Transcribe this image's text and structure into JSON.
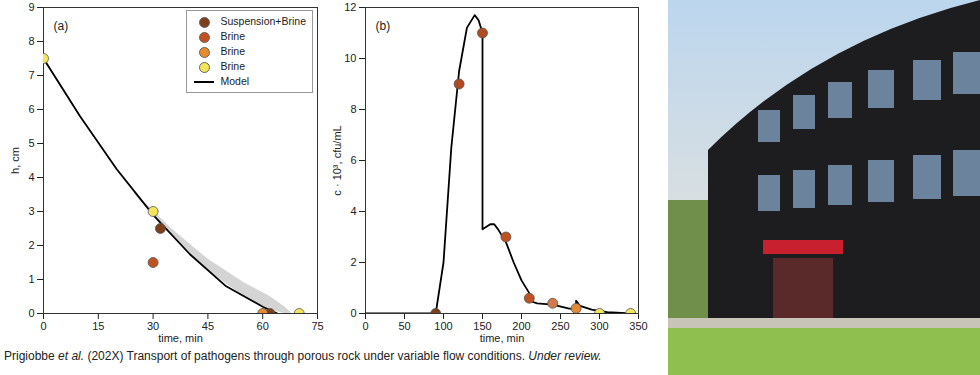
{
  "chart_data": [
    {
      "type": "scatter",
      "title": "(a)",
      "x_label": "time, min",
      "y_label": "h, cm",
      "xlim": [
        0,
        75
      ],
      "xticks": [
        0,
        15,
        30,
        45,
        60,
        75
      ],
      "ylim": [
        0,
        9
      ],
      "yticks": [
        0,
        1,
        2,
        3,
        4,
        5,
        6,
        7,
        8,
        9
      ],
      "legend": "top-right",
      "series": [
        {
          "name": "Suspension+Brine",
          "type": "scatter",
          "color": "#7b3f1a",
          "x": [
            32,
            62
          ],
          "values": [
            2.5,
            0
          ]
        },
        {
          "name": "Brine",
          "type": "scatter",
          "color": "#c0521f",
          "x": [
            30
          ],
          "values": [
            1.5
          ]
        },
        {
          "name": "Brine",
          "type": "scatter",
          "color": "#e88a30",
          "x": [
            60
          ],
          "values": [
            0
          ]
        },
        {
          "name": "Brine",
          "type": "scatter",
          "color": "#f2e55c",
          "x": [
            0,
            30,
            70
          ],
          "values": [
            7.5,
            3,
            0
          ]
        },
        {
          "name": "Model",
          "type": "line",
          "color": "#000000",
          "x": [
            0,
            10,
            20,
            30,
            40,
            50,
            60,
            64
          ],
          "values": [
            7.5,
            5.8,
            4.25,
            2.9,
            1.75,
            0.8,
            0.2,
            0
          ],
          "band": {
            "x": [
              25,
              35,
              45,
              55,
              62,
              66,
              68
            ],
            "lower": [
              3.5,
              2.3,
              1.25,
              0.5,
              0.1,
              0,
              0
            ],
            "upper": [
              3.55,
              2.5,
              1.6,
              0.9,
              0.5,
              0.2,
              0
            ]
          }
        }
      ]
    },
    {
      "type": "scatter",
      "title": "(b)",
      "x_label": "time, min",
      "y_label": "c · 10³, cfu/mL",
      "xlim": [
        0,
        350
      ],
      "xticks": [
        0,
        50,
        100,
        150,
        200,
        250,
        300,
        350
      ],
      "ylim": [
        0,
        12
      ],
      "yticks": [
        0,
        2,
        4,
        6,
        8,
        10,
        12
      ],
      "series": [
        {
          "type": "scatter",
          "colors": [
            "#7b3f1a",
            "#b04a20",
            "#b04a20",
            "#c0521f",
            "#c0521f",
            "#d27a4a",
            "#e08a35",
            "#f2e55c",
            "#f2e55c"
          ],
          "x": [
            90,
            120,
            150,
            180,
            210,
            240,
            270,
            300,
            340
          ],
          "values": [
            0,
            9,
            11,
            3,
            0.6,
            0.4,
            0.2,
            0,
            0
          ]
        },
        {
          "type": "line",
          "color": "#000000",
          "x": [
            0,
            88,
            90,
            100,
            110,
            120,
            130,
            140,
            145,
            150,
            150,
            155,
            160,
            165,
            170,
            180,
            190,
            200,
            210,
            210,
            220,
            240,
            260,
            270,
            270,
            275,
            290,
            310,
            340
          ],
          "values": [
            0,
            0,
            0,
            2,
            6.5,
            9.5,
            11.2,
            11.7,
            11.5,
            11,
            3.3,
            3.4,
            3.5,
            3.5,
            3.3,
            2.8,
            2.0,
            1.3,
            0.8,
            0.5,
            0.4,
            0.35,
            0.2,
            0.15,
            0.5,
            0.3,
            0.15,
            0.05,
            0
          ]
        }
      ]
    }
  ],
  "caption": [
    "Prigiobbe ",
    "et al.",
    " (202X) Transport of pathogens through porous rock under variable flow conditions. ",
    "Under review."
  ]
}
